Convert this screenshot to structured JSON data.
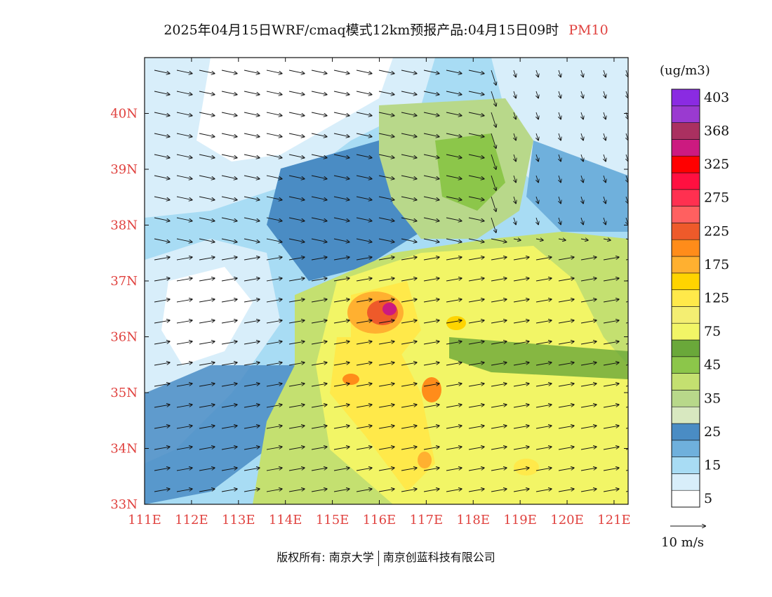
{
  "title": {
    "main": "2025年04月15日WRF/cmaq模式12km预报产品:04月15日09时",
    "pollutant": "PM10"
  },
  "map": {
    "lon_range": [
      111,
      121.3
    ],
    "lat_range": [
      33,
      41
    ],
    "lon_ticks": [
      "111E",
      "112E",
      "113E",
      "114E",
      "115E",
      "116E",
      "117E",
      "118E",
      "119E",
      "120E",
      "121E"
    ],
    "lat_ticks": [
      "33N",
      "34N",
      "35N",
      "36N",
      "37N",
      "38N",
      "39N",
      "40N"
    ],
    "tick_color": "#e0423f"
  },
  "legend": {
    "unit": "(ug/m3)",
    "colors": [
      "#ffffff",
      "#d8eefa",
      "#a8dcf4",
      "#6fb0dc",
      "#4a8cc4",
      "#d8e8c0",
      "#b8d88a",
      "#c4e070",
      "#8cc64a",
      "#6aa83a",
      "#f2f566",
      "#f4ee72",
      "#ffe94a",
      "#ffd400",
      "#ffb030",
      "#ff8c1a",
      "#ee5a2a",
      "#ff6060",
      "#ff3050",
      "#ff1040",
      "#ff0000",
      "#cc1a80",
      "#aa3060",
      "#9a3ad0",
      "#8a2be2"
    ],
    "labels": [
      "5",
      "15",
      "25",
      "35",
      "45",
      "75",
      "125",
      "175",
      "225",
      "275",
      "325",
      "368",
      "403"
    ]
  },
  "wind_legend": {
    "label": "10 m/s"
  },
  "footer": {
    "left": "版权所有: 南京大学",
    "right": "南京创蓝科技有限公司"
  }
}
